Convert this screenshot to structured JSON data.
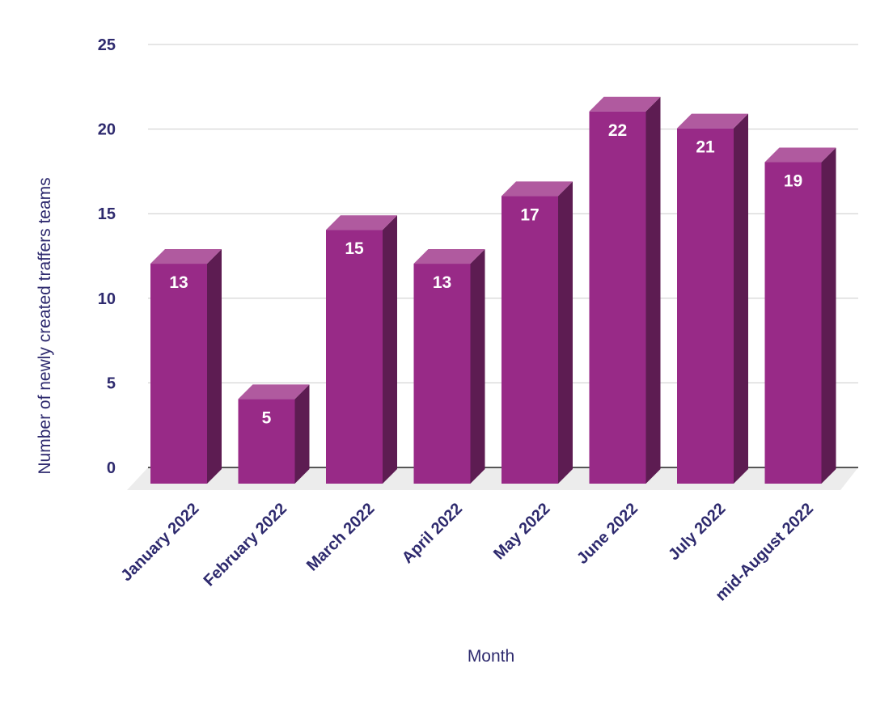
{
  "chart_data": {
    "type": "bar",
    "title": "",
    "xlabel": "Month",
    "ylabel": "Number of newly created traffers teams",
    "categories": [
      "January 2022",
      "February 2022",
      "March 2022",
      "April 2022",
      "May 2022",
      "June 2022",
      "July 2022",
      "mid-August 2022"
    ],
    "values": [
      13,
      5,
      15,
      13,
      17,
      22,
      21,
      19
    ],
    "ylim": [
      0,
      25
    ],
    "yticks": [
      "0",
      "5",
      "10",
      "15",
      "20",
      "25"
    ],
    "grid": true,
    "legend": "none",
    "style": "3d-bar",
    "colors": {
      "bar_front": "#982a87",
      "bar_top": "#b05a9f",
      "bar_side": "#5d1c52",
      "grid": "#cccccc",
      "floor": "#ececec",
      "text": "#2e2a6e"
    }
  }
}
